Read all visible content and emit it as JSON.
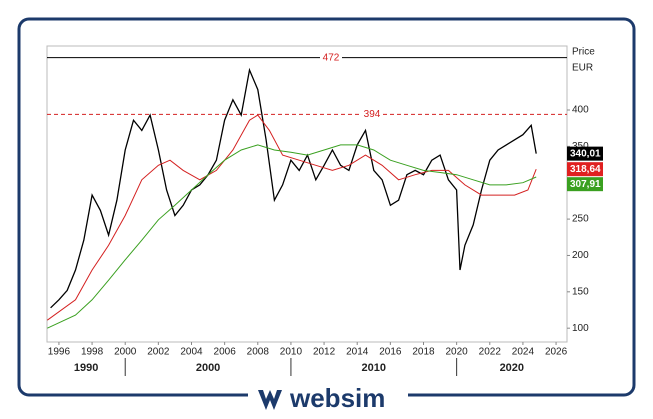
{
  "chart_data": {
    "type": "line",
    "axis_title": "Price",
    "axis_unit": "EUR",
    "brand": "websim",
    "xlim": [
      1995.28,
      2026.66
    ],
    "xticks": [
      1996,
      1998,
      2000,
      2002,
      2004,
      2006,
      2008,
      2010,
      2012,
      2014,
      2016,
      2018,
      2020,
      2022,
      2024,
      2026
    ],
    "decades": [
      1990,
      2000,
      2010,
      2020
    ],
    "ylim": [
      81,
      488
    ],
    "yticks": [
      100,
      150,
      200,
      250,
      300,
      350,
      400
    ],
    "reference_lines": [
      {
        "value": 472,
        "label": "472",
        "color": "#000000",
        "dashed": false
      },
      {
        "value": 394,
        "label": "394",
        "color": "#d42020",
        "dashed": true
      }
    ],
    "last_labels": [
      {
        "value": 340.01,
        "label": "340,01",
        "color": "#000000"
      },
      {
        "value": 318.64,
        "label": "318,64",
        "color": "#e02020"
      },
      {
        "value": 307.91,
        "label": "307,91",
        "color": "#3aa020"
      }
    ],
    "series": [
      {
        "color": "#000000",
        "x": [
          1995.5,
          1996,
          1996.5,
          1997,
          1997.5,
          1998,
          1998.5,
          1999,
          1999.5,
          2000,
          2000.5,
          2001,
          2001.5,
          2002,
          2002.5,
          2003,
          2003.5,
          2004,
          2004.5,
          2005,
          2005.5,
          2006,
          2006.5,
          2007,
          2007.5,
          2008,
          2008.5,
          2009,
          2009.5,
          2010,
          2010.5,
          2011,
          2011.5,
          2012,
          2012.5,
          2013,
          2013.5,
          2014,
          2014.5,
          2015,
          2015.5,
          2016,
          2016.5,
          2017,
          2017.5,
          2018,
          2018.5,
          2019,
          2019.5,
          2020,
          2020.2,
          2020.5,
          2021,
          2021.5,
          2022,
          2022.5,
          2023,
          2023.5,
          2024,
          2024.5,
          2024.8
        ],
        "values": [
          128,
          139,
          152,
          180,
          221,
          283,
          262,
          228,
          276,
          345,
          386,
          372,
          393,
          345,
          290,
          255,
          269,
          290,
          297,
          311,
          331,
          386,
          414,
          393,
          455,
          428,
          359,
          276,
          297,
          331,
          317,
          338,
          304,
          324,
          345,
          324,
          317,
          352,
          372,
          317,
          304,
          269,
          276,
          311,
          317,
          311,
          331,
          338,
          304,
          290,
          180,
          214,
          242,
          290,
          331,
          345,
          352,
          359,
          366,
          379,
          340.01
        ]
      },
      {
        "color": "#d42020",
        "x": [
          1995.3,
          1997,
          1998,
          1999,
          2000,
          2001,
          2002,
          2002.7,
          2003.5,
          2004.5,
          2005.5,
          2006.5,
          2007.5,
          2008,
          2008.7,
          2009.5,
          2010.5,
          2011.5,
          2012.5,
          2013.5,
          2014.5,
          2015.5,
          2016.5,
          2017.5,
          2018.5,
          2019.5,
          2020.5,
          2021.5,
          2022.5,
          2023.5,
          2024.3,
          2024.8
        ],
        "values": [
          111,
          139,
          180,
          214,
          255,
          304,
          324,
          331,
          317,
          304,
          317,
          345,
          386,
          393,
          372,
          338,
          331,
          324,
          317,
          324,
          338,
          324,
          304,
          311,
          317,
          317,
          297,
          283,
          283,
          283,
          290,
          318.64
        ]
      },
      {
        "color": "#3aa020",
        "x": [
          1995.3,
          1997,
          1998,
          1999,
          2000,
          2001,
          2002,
          2003,
          2004,
          2005,
          2006,
          2007,
          2008,
          2009,
          2010,
          2011,
          2012,
          2013,
          2014,
          2015,
          2016,
          2017,
          2018,
          2019,
          2020,
          2021,
          2022,
          2023,
          2024,
          2024.8
        ],
        "values": [
          100,
          118,
          139,
          166,
          194,
          221,
          249,
          269,
          290,
          311,
          331,
          345,
          352,
          345,
          342,
          338,
          345,
          352,
          352,
          345,
          331,
          324,
          317,
          314,
          311,
          304,
          297,
          297,
          300,
          307.91
        ]
      }
    ]
  }
}
